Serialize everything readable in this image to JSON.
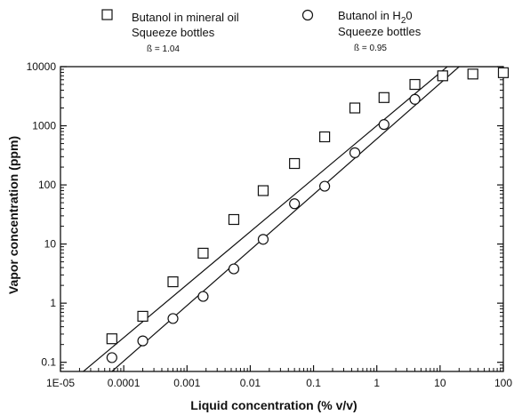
{
  "chart_data": {
    "type": "scatter",
    "xlabel": "Liquid concentration (% v/v)",
    "ylabel": "Vapor concentration (ppm)",
    "x_scale": "log",
    "y_scale": "log",
    "xlim": [
      1e-05,
      100
    ],
    "ylim": [
      0.07,
      10000
    ],
    "x_ticks": [
      {
        "value": 1e-05,
        "label": "1E-05"
      },
      {
        "value": 0.0001,
        "label": "0.0001"
      },
      {
        "value": 0.001,
        "label": "0.001"
      },
      {
        "value": 0.01,
        "label": "0.01"
      },
      {
        "value": 0.1,
        "label": "0.1"
      },
      {
        "value": 1,
        "label": "1"
      },
      {
        "value": 10,
        "label": "10"
      },
      {
        "value": 100,
        "label": "100"
      }
    ],
    "y_ticks": [
      {
        "value": 0.1,
        "label": "0.1"
      },
      {
        "value": 1,
        "label": "1"
      },
      {
        "value": 10,
        "label": "10"
      },
      {
        "value": 100,
        "label": "100"
      },
      {
        "value": 1000,
        "label": "1000"
      },
      {
        "value": 10000,
        "label": "10000"
      }
    ],
    "grid": false,
    "legend_position": "top",
    "series": [
      {
        "name_line1": "Butanol in mineral oil",
        "name_line2": "Squeeze bottles",
        "beta_label": "ß = 1.04",
        "marker": "square",
        "points": [
          {
            "x": 6.5e-05,
            "y": 0.25
          },
          {
            "x": 0.0002,
            "y": 0.6
          },
          {
            "x": 0.0006,
            "y": 2.3
          },
          {
            "x": 0.0018,
            "y": 7
          },
          {
            "x": 0.0055,
            "y": 26
          },
          {
            "x": 0.016,
            "y": 80
          },
          {
            "x": 0.05,
            "y": 230
          },
          {
            "x": 0.15,
            "y": 650
          },
          {
            "x": 0.45,
            "y": 2000
          },
          {
            "x": 1.3,
            "y": 3000
          },
          {
            "x": 4,
            "y": 5000
          },
          {
            "x": 11,
            "y": 7000
          },
          {
            "x": 33,
            "y": 7500
          },
          {
            "x": 100,
            "y": 7900
          }
        ],
        "fit_line": [
          {
            "x": 2.3e-05,
            "y": 0.07
          },
          {
            "x": 13,
            "y": 10000
          },
          {
            "x": 100,
            "y": 10000
          }
        ]
      },
      {
        "name_line1": "Butanol in H",
        "name_sub": "2",
        "name_tail": "0",
        "name_line2": "Squeeze bottles",
        "beta_label": "ß = 0.95",
        "marker": "circle",
        "points": [
          {
            "x": 6.5e-05,
            "y": 0.12
          },
          {
            "x": 0.0002,
            "y": 0.23
          },
          {
            "x": 0.0006,
            "y": 0.55
          },
          {
            "x": 0.0018,
            "y": 1.3
          },
          {
            "x": 0.0055,
            "y": 3.8
          },
          {
            "x": 0.016,
            "y": 12
          },
          {
            "x": 0.05,
            "y": 48
          },
          {
            "x": 0.15,
            "y": 95
          },
          {
            "x": 0.45,
            "y": 350
          },
          {
            "x": 1.3,
            "y": 1050
          },
          {
            "x": 4,
            "y": 2800
          }
        ],
        "fit_line": [
          {
            "x": 6.5e-05,
            "y": 0.07
          },
          {
            "x": 20,
            "y": 10000
          }
        ]
      }
    ]
  }
}
